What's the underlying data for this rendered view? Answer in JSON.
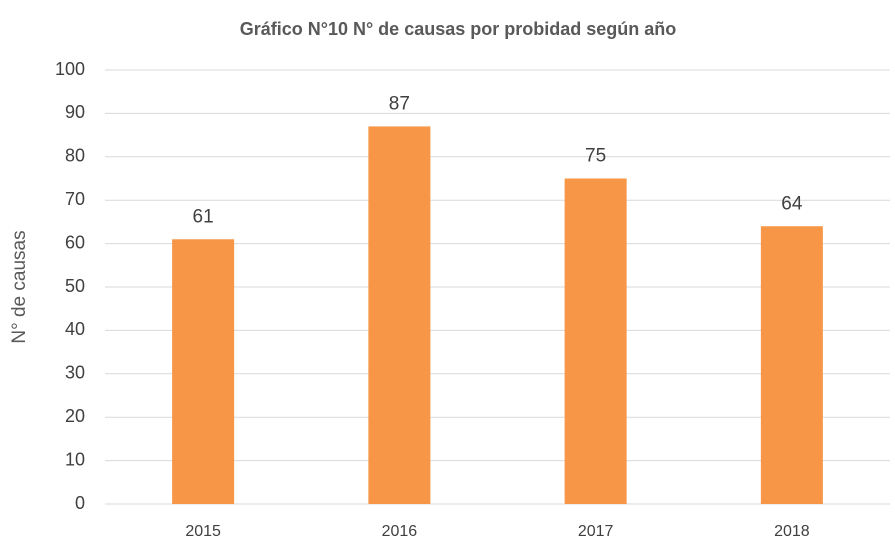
{
  "chart_data": {
    "type": "bar",
    "title": "Gráfico N°10 N° de causas por probidad según año",
    "y_label": "N° de causas",
    "categories": [
      "2015",
      "2016",
      "2017",
      "2018"
    ],
    "values": [
      61,
      87,
      75,
      64
    ],
    "color": "#f79646",
    "ylim": [
      0,
      100
    ],
    "yticks": [
      0,
      10,
      20,
      30,
      40,
      50,
      60,
      70,
      80,
      90,
      100
    ],
    "grid": true
  }
}
